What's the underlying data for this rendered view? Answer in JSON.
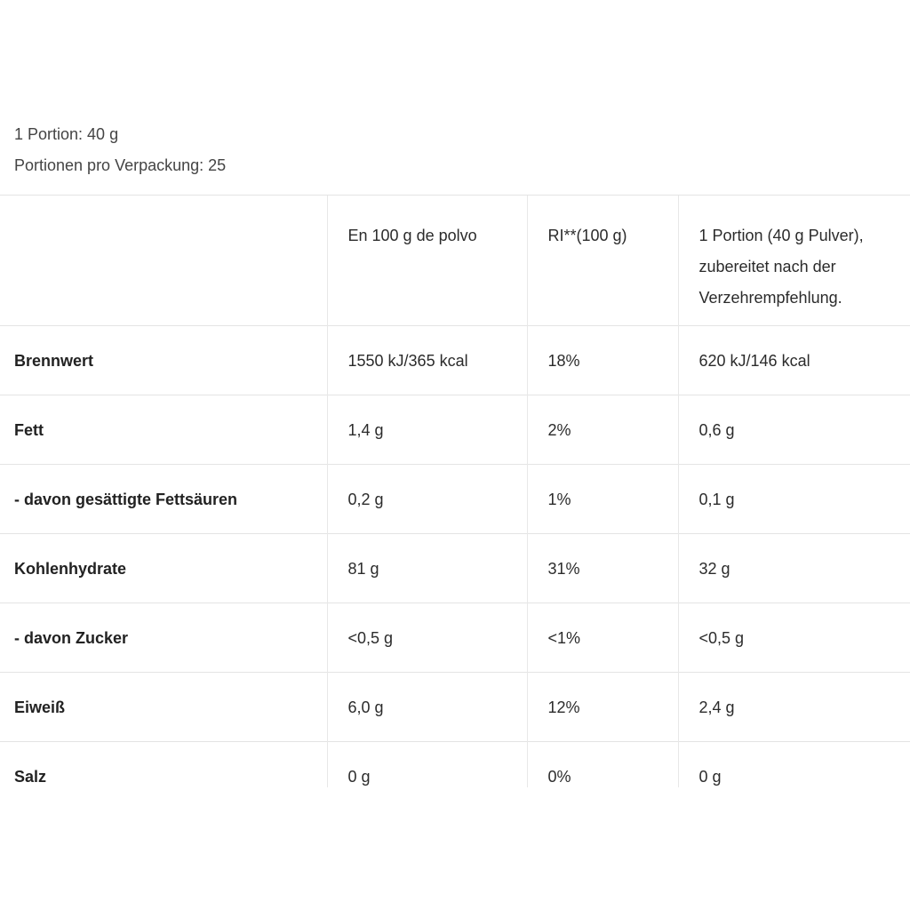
{
  "serving": {
    "portion": "1 Portion: 40 g",
    "per_pack": "Portionen pro Verpackung: 25"
  },
  "table": {
    "headers": [
      "",
      "En 100 g de polvo",
      "RI**(100 g)",
      "1 Portion (40 g Pulver), zubereitet nach der Verzehrempfehlung."
    ],
    "rows": [
      [
        "Brennwert",
        "1550 kJ/365 kcal",
        "18%",
        "620 kJ/146 kcal"
      ],
      [
        "Fett",
        "1,4 g",
        "2%",
        "0,6 g"
      ],
      [
        "- davon gesättigte Fettsäuren",
        "0,2 g",
        "1%",
        "0,1 g"
      ],
      [
        "Kohlenhydrate",
        "81 g",
        "31%",
        "32 g"
      ],
      [
        "- davon Zucker",
        "<0,5 g",
        "<1%",
        "<0,5 g"
      ],
      [
        "Eiweiß",
        "6,0 g",
        "12%",
        "2,4 g"
      ],
      [
        "Salz",
        "0 g",
        "0%",
        "0 g"
      ]
    ]
  }
}
